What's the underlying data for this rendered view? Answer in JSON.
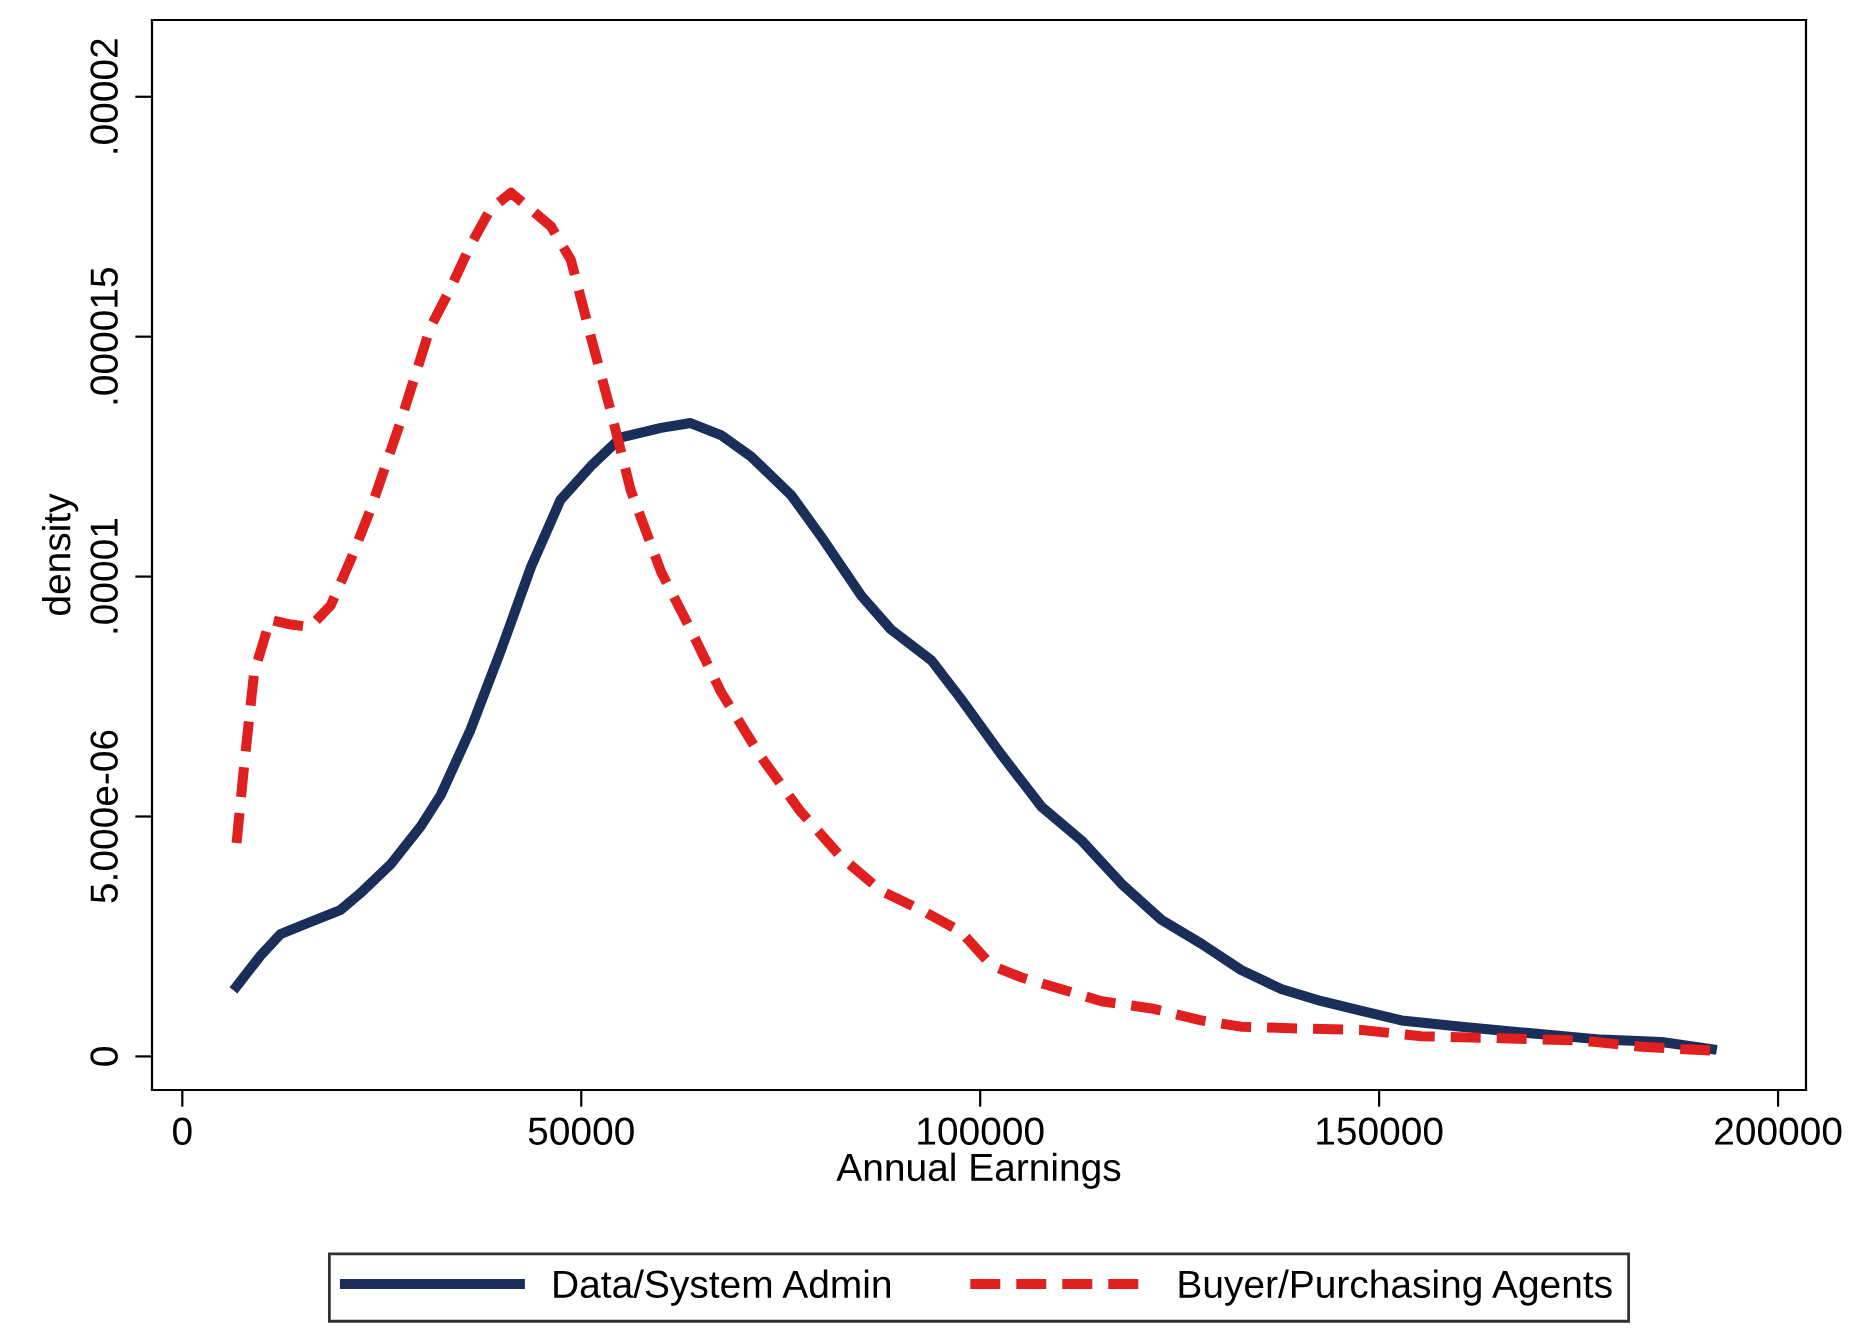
{
  "chart_data": {
    "type": "line",
    "xlabel": "Annual Earnings",
    "ylabel": "density",
    "xlim": [
      -3800,
      203500
    ],
    "xticks": [
      0,
      50000,
      100000,
      150000,
      200000
    ],
    "ylim": [
      -7e-07,
      2.16e-05
    ],
    "yticks": [
      {
        "value": 0,
        "label": "0"
      },
      {
        "value": 5e-06,
        "label": "5.000e-06"
      },
      {
        "value": 1e-05,
        "label": ".00001"
      },
      {
        "value": 1.5e-05,
        "label": ".000015"
      },
      {
        "value": 2e-05,
        "label": ".00002"
      }
    ],
    "grid": false,
    "legend": "bottom",
    "series": [
      {
        "name": "Data/System Admin",
        "color": "#1a2e5a",
        "line_style": "solid",
        "x": [
          6800,
          9800,
          12300,
          16000,
          19800,
          22300,
          26100,
          29900,
          32400,
          36100,
          39900,
          43700,
          47400,
          51200,
          55000,
          60000,
          63700,
          67500,
          71300,
          76300,
          80000,
          85100,
          88800,
          93900,
          97600,
          102600,
          107700,
          112700,
          117700,
          122700,
          127700,
          132700,
          137800,
          142800,
          147800,
          152800,
          160300,
          167900,
          177900,
          185400,
          191700
        ],
        "values": [
          1.46e-06,
          2.1e-06,
          2.55e-06,
          2.8e-06,
          3.05e-06,
          3.4e-06,
          4e-06,
          4.8e-06,
          5.45e-06,
          6.8e-06,
          8.45e-06,
          1.02e-05,
          1.16e-05,
          1.23e-05,
          1.29e-05,
          1.31e-05,
          1.32e-05,
          1.295e-05,
          1.25e-05,
          1.17e-05,
          1.085e-05,
          9.6e-06,
          8.9e-06,
          8.25e-06,
          7.45e-06,
          6.3e-06,
          5.2e-06,
          4.5e-06,
          3.6e-06,
          2.85e-06,
          2.35e-06,
          1.8e-06,
          1.4e-06,
          1.15e-06,
          9.5e-07,
          7.5e-07,
          6.2e-07,
          5e-07,
          3.5e-07,
          3e-07,
          1.5e-07
        ]
      },
      {
        "name": "Buyer/Purchasing Agents",
        "color": "#e0201f",
        "line_style": "dashed",
        "x": [
          6800,
          7800,
          9000,
          11000,
          13600,
          16000,
          18600,
          21100,
          23600,
          27400,
          31100,
          33600,
          36100,
          38600,
          41200,
          43700,
          46200,
          48700,
          51200,
          53700,
          56200,
          60000,
          63700,
          67500,
          72500,
          77500,
          82600,
          87600,
          92600,
          97600,
          101400,
          105100,
          110200,
          115200,
          121500,
          127700,
          132700,
          140300,
          147800,
          155300,
          165400,
          175400,
          182900,
          191700
        ],
        "values": [
          4.45e-06,
          6.15e-06,
          8e-06,
          9.1e-06,
          9e-06,
          8.95e-06,
          9.4e-06,
          1.035e-05,
          1.14e-05,
          1.325e-05,
          1.52e-05,
          1.6e-05,
          1.69e-05,
          1.765e-05,
          1.8e-05,
          1.765e-05,
          1.73e-05,
          1.66e-05,
          1.5e-05,
          1.345e-05,
          1.18e-05,
          1.01e-05,
          8.9e-06,
          7.6e-06,
          6.25e-06,
          5.1e-06,
          4.15e-06,
          3.45e-06,
          3.05e-06,
          2.6e-06,
          1.9e-06,
          1.65e-06,
          1.4e-06,
          1.15e-06,
          1e-06,
          7.5e-07,
          6.2e-07,
          5.8e-07,
          5.5e-07,
          4.2e-07,
          3.8e-07,
          3.3e-07,
          2e-07,
          1.2e-07
        ]
      }
    ]
  }
}
